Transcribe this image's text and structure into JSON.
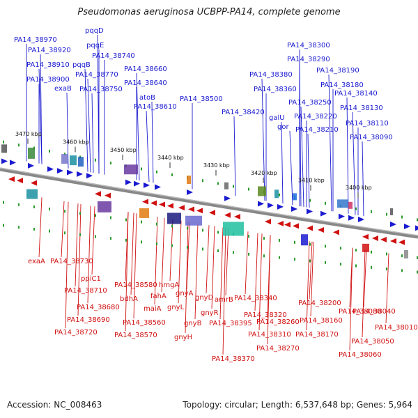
{
  "title": "Pseudomonas aeruginosa UCBPP-PA14, complete genome",
  "footer": {
    "accession": "Accession: NC_008463",
    "info": "Topology: circular; Length: 6,537,648 bp; Genes: 5,964"
  },
  "colors": {
    "forward": "#1a1ad0",
    "reverse": "#d01010",
    "backbone": "#888888",
    "marker": "#2a9a2a"
  },
  "ticks": [
    "3470 kbp",
    "3460 kbp",
    "3450 kbp",
    "3440 kbp",
    "3430 kbp",
    "3420 kbp",
    "3410 kbp",
    "3400 kbp"
  ],
  "top_labels": [
    "PA14_38970",
    "PA14_38920",
    "PA14_38910",
    "PA14_38900",
    "exaB",
    "pqqB",
    "pqqE",
    "pqqD",
    "PA14_38770",
    "PA14_38740",
    "PA14_38750",
    "PA14_38660",
    "PA14_38640",
    "atoB",
    "PA14_38610",
    "PA14_38500",
    "PA14_38420",
    "PA14_38380",
    "PA14_38360",
    "galU",
    "gor",
    "PA14_38300",
    "PA14_38290",
    "PA14_38250",
    "PA14_38220",
    "PA14_38210",
    "PA14_38190",
    "PA14_38180",
    "PA14_38140",
    "PA14_38130",
    "PA14_38110",
    "PA14_38090"
  ],
  "bottom_labels": [
    "exaA",
    "PA14_38730",
    "ppiC1",
    "PA14_38710",
    "PA14_38680",
    "PA14_38690",
    "PA14_38720",
    "PA14_38580",
    "bdhA",
    "fahA",
    "maiA",
    "PA14_38560",
    "PA14_38570",
    "hmgA",
    "gnyA",
    "gnyL",
    "gnyB",
    "gnyH",
    "gnyD",
    "gnyR",
    "amrB",
    "PA14_38395",
    "PA14_38370",
    "PA14_38340",
    "PA14_38320",
    "PA14_38310",
    "PA14_38260",
    "PA14_38270",
    "PA14_38200",
    "PA14_38160",
    "PA14_38170",
    "PA14_38080",
    "PA14_38040",
    "PA14_38010",
    "PA14_38050",
    "PA14_38060"
  ]
}
